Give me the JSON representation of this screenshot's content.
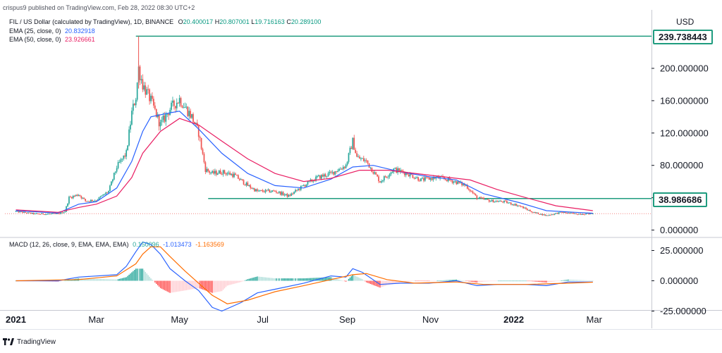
{
  "publisher": "crispus9 published on TradingView.com, Feb 28, 2022 08:30 UTC+2",
  "currency": "USD",
  "legend": {
    "symbol": "FIL / US Dollar (calculated by TradingView), 1D, BINANCE",
    "o_label": "O",
    "o": "20.400017",
    "h_label": "H",
    "h": "20.807001",
    "l_label": "L",
    "l": "19.716163",
    "c_label": "C",
    "c": "20.289100",
    "ema25_label": "EMA (25, close, 0)",
    "ema25": "20.832918",
    "ema50_label": "EMA (50, close, 0)",
    "ema50": "23.926661"
  },
  "price_tags": {
    "top": "239.738443",
    "mid": "38.986686"
  },
  "macd_legend": {
    "label": "MACD (12, 26, close, 9, EMA, EMA, EMA)",
    "hist": "0.150096",
    "macd": "-1.013473",
    "signal": "-1.163569"
  },
  "footer": {
    "brand": "TradingView"
  },
  "colors": {
    "up": "#26a69a",
    "down": "#ef5350",
    "ema25": "#2962ff",
    "ema50": "#e91e63",
    "macd": "#2962ff",
    "signal": "#ff6d00",
    "support": "#1f9c7f",
    "text": "#131722"
  },
  "chart_data": [
    {
      "type": "line",
      "title": "FIL / US Dollar (calculated by TradingView), 1D, BINANCE",
      "x_tick_labels": [
        "2021",
        "Mar",
        "May",
        "Jul",
        "Sep",
        "Nov",
        "2022",
        "Mar"
      ],
      "y_ticks": [
        "0.000000",
        "40.000000",
        "80.000000",
        "120.000000",
        "160.000000",
        "200.000000"
      ],
      "ylim": [
        0,
        248
      ],
      "horizontal_lines": [
        239.738443,
        38.986686
      ],
      "last_close": 20.2891,
      "closes": [
        {
          "x": "2021-01-01",
          "y": 23
        },
        {
          "x": "2021-01-15",
          "y": 20
        },
        {
          "x": "2021-02-01",
          "y": 20
        },
        {
          "x": "2021-02-06",
          "y": 23
        },
        {
          "x": "2021-02-09",
          "y": 40
        },
        {
          "x": "2021-02-16",
          "y": 44
        },
        {
          "x": "2021-02-21",
          "y": 36
        },
        {
          "x": "2021-03-01",
          "y": 37
        },
        {
          "x": "2021-03-10",
          "y": 48
        },
        {
          "x": "2021-03-16",
          "y": 78
        },
        {
          "x": "2021-03-23",
          "y": 95
        },
        {
          "x": "2021-03-27",
          "y": 145
        },
        {
          "x": "2021-03-30",
          "y": 165
        },
        {
          "x": "2021-04-01",
          "y": 200
        },
        {
          "x": "2021-04-04",
          "y": 180
        },
        {
          "x": "2021-04-10",
          "y": 160
        },
        {
          "x": "2021-04-17",
          "y": 130
        },
        {
          "x": "2021-04-24",
          "y": 150
        },
        {
          "x": "2021-05-01",
          "y": 162
        },
        {
          "x": "2021-05-10",
          "y": 140
        },
        {
          "x": "2021-05-15",
          "y": 120
        },
        {
          "x": "2021-05-20",
          "y": 75
        },
        {
          "x": "2021-05-25",
          "y": 70
        },
        {
          "x": "2021-06-01",
          "y": 72
        },
        {
          "x": "2021-06-10",
          "y": 68
        },
        {
          "x": "2021-06-20",
          "y": 55
        },
        {
          "x": "2021-06-27",
          "y": 48
        },
        {
          "x": "2021-07-10",
          "y": 48
        },
        {
          "x": "2021-07-20",
          "y": 42
        },
        {
          "x": "2021-07-31",
          "y": 55
        },
        {
          "x": "2021-08-10",
          "y": 65
        },
        {
          "x": "2021-08-20",
          "y": 70
        },
        {
          "x": "2021-08-31",
          "y": 80
        },
        {
          "x": "2021-09-05",
          "y": 110
        },
        {
          "x": "2021-09-08",
          "y": 90
        },
        {
          "x": "2021-09-15",
          "y": 85
        },
        {
          "x": "2021-09-25",
          "y": 60
        },
        {
          "x": "2021-10-05",
          "y": 75
        },
        {
          "x": "2021-10-15",
          "y": 70
        },
        {
          "x": "2021-10-25",
          "y": 62
        },
        {
          "x": "2021-11-05",
          "y": 65
        },
        {
          "x": "2021-11-15",
          "y": 62
        },
        {
          "x": "2021-11-27",
          "y": 55
        },
        {
          "x": "2021-12-05",
          "y": 40
        },
        {
          "x": "2021-12-15",
          "y": 36
        },
        {
          "x": "2021-12-25",
          "y": 35
        },
        {
          "x": "2022-01-05",
          "y": 30
        },
        {
          "x": "2022-01-15",
          "y": 22
        },
        {
          "x": "2022-01-25",
          "y": 18
        },
        {
          "x": "2022-02-05",
          "y": 22
        },
        {
          "x": "2022-02-15",
          "y": 20
        },
        {
          "x": "2022-02-28",
          "y": 20.2891
        }
      ],
      "series": [
        {
          "name": "EMA (25, close, 0)",
          "values": [
            {
              "x": "2021-01-01",
              "y": 24
            },
            {
              "x": "2021-02-01",
              "y": 21
            },
            {
              "x": "2021-02-16",
              "y": 32
            },
            {
              "x": "2021-03-01",
              "y": 35
            },
            {
              "x": "2021-03-16",
              "y": 52
            },
            {
              "x": "2021-03-27",
              "y": 85
            },
            {
              "x": "2021-04-04",
              "y": 122
            },
            {
              "x": "2021-04-10",
              "y": 140
            },
            {
              "x": "2021-04-24",
              "y": 145
            },
            {
              "x": "2021-05-01",
              "y": 147
            },
            {
              "x": "2021-05-15",
              "y": 125
            },
            {
              "x": "2021-06-01",
              "y": 95
            },
            {
              "x": "2021-06-20",
              "y": 70
            },
            {
              "x": "2021-07-10",
              "y": 55
            },
            {
              "x": "2021-07-31",
              "y": 52
            },
            {
              "x": "2021-08-20",
              "y": 63
            },
            {
              "x": "2021-09-05",
              "y": 78
            },
            {
              "x": "2021-09-20",
              "y": 80
            },
            {
              "x": "2021-10-10",
              "y": 72
            },
            {
              "x": "2021-10-31",
              "y": 66
            },
            {
              "x": "2021-11-20",
              "y": 62
            },
            {
              "x": "2021-12-10",
              "y": 45
            },
            {
              "x": "2022-01-05",
              "y": 34
            },
            {
              "x": "2022-01-25",
              "y": 24
            },
            {
              "x": "2022-02-15",
              "y": 22
            },
            {
              "x": "2022-02-28",
              "y": 20.832918
            }
          ]
        },
        {
          "name": "EMA (50, close, 0)",
          "values": [
            {
              "x": "2021-01-01",
              "y": 25
            },
            {
              "x": "2021-02-01",
              "y": 22
            },
            {
              "x": "2021-02-16",
              "y": 28
            },
            {
              "x": "2021-03-01",
              "y": 32
            },
            {
              "x": "2021-03-16",
              "y": 42
            },
            {
              "x": "2021-03-27",
              "y": 65
            },
            {
              "x": "2021-04-04",
              "y": 95
            },
            {
              "x": "2021-04-17",
              "y": 122
            },
            {
              "x": "2021-05-01",
              "y": 138
            },
            {
              "x": "2021-05-15",
              "y": 130
            },
            {
              "x": "2021-06-01",
              "y": 110
            },
            {
              "x": "2021-06-20",
              "y": 88
            },
            {
              "x": "2021-07-10",
              "y": 70
            },
            {
              "x": "2021-07-31",
              "y": 60
            },
            {
              "x": "2021-08-20",
              "y": 64
            },
            {
              "x": "2021-09-10",
              "y": 74
            },
            {
              "x": "2021-10-01",
              "y": 74
            },
            {
              "x": "2021-10-31",
              "y": 68
            },
            {
              "x": "2021-11-30",
              "y": 62
            },
            {
              "x": "2021-12-20",
              "y": 50
            },
            {
              "x": "2022-01-10",
              "y": 40
            },
            {
              "x": "2022-02-01",
              "y": 30
            },
            {
              "x": "2022-02-28",
              "y": 23.926661
            }
          ]
        }
      ]
    },
    {
      "type": "line",
      "title": "MACD (12, 26, close, 9, EMA, EMA, EMA)",
      "y_ticks": [
        "-25.000000",
        "0.000000",
        "25.000000"
      ],
      "ylim": [
        -28,
        38
      ],
      "series": [
        {
          "name": "MACD",
          "values": [
            {
              "x": "2021-01-01",
              "y": 0
            },
            {
              "x": "2021-02-01",
              "y": 0
            },
            {
              "x": "2021-02-16",
              "y": 3
            },
            {
              "x": "2021-03-16",
              "y": 5
            },
            {
              "x": "2021-03-23",
              "y": 12
            },
            {
              "x": "2021-03-30",
              "y": 24
            },
            {
              "x": "2021-04-04",
              "y": 32
            },
            {
              "x": "2021-04-10",
              "y": 30
            },
            {
              "x": "2021-04-17",
              "y": 22
            },
            {
              "x": "2021-04-24",
              "y": 10
            },
            {
              "x": "2021-05-05",
              "y": 0
            },
            {
              "x": "2021-05-15",
              "y": -8
            },
            {
              "x": "2021-05-25",
              "y": -22
            },
            {
              "x": "2021-06-01",
              "y": -25
            },
            {
              "x": "2021-06-15",
              "y": -18
            },
            {
              "x": "2021-06-27",
              "y": -10
            },
            {
              "x": "2021-07-10",
              "y": -7
            },
            {
              "x": "2021-07-31",
              "y": -2
            },
            {
              "x": "2021-08-20",
              "y": 4
            },
            {
              "x": "2021-08-31",
              "y": 3
            },
            {
              "x": "2021-09-05",
              "y": 10
            },
            {
              "x": "2021-09-12",
              "y": 7
            },
            {
              "x": "2021-09-25",
              "y": -3
            },
            {
              "x": "2021-10-10",
              "y": -2
            },
            {
              "x": "2021-10-31",
              "y": -2
            },
            {
              "x": "2021-11-20",
              "y": 0
            },
            {
              "x": "2021-12-05",
              "y": -4
            },
            {
              "x": "2021-12-20",
              "y": -3
            },
            {
              "x": "2022-01-10",
              "y": -3
            },
            {
              "x": "2022-01-25",
              "y": -4
            },
            {
              "x": "2022-02-10",
              "y": -1
            },
            {
              "x": "2022-02-28",
              "y": -1.013473
            }
          ]
        },
        {
          "name": "Signal",
          "values": [
            {
              "x": "2021-01-01",
              "y": 0
            },
            {
              "x": "2021-02-16",
              "y": 1
            },
            {
              "x": "2021-03-16",
              "y": 4
            },
            {
              "x": "2021-03-30",
              "y": 14
            },
            {
              "x": "2021-04-04",
              "y": 22
            },
            {
              "x": "2021-04-10",
              "y": 28
            },
            {
              "x": "2021-04-17",
              "y": 28
            },
            {
              "x": "2021-04-24",
              "y": 20
            },
            {
              "x": "2021-05-05",
              "y": 8
            },
            {
              "x": "2021-05-15",
              "y": -2
            },
            {
              "x": "2021-05-25",
              "y": -12
            },
            {
              "x": "2021-06-05",
              "y": -19
            },
            {
              "x": "2021-06-20",
              "y": -16
            },
            {
              "x": "2021-07-10",
              "y": -9
            },
            {
              "x": "2021-07-31",
              "y": -4
            },
            {
              "x": "2021-08-20",
              "y": 1
            },
            {
              "x": "2021-09-05",
              "y": 5
            },
            {
              "x": "2021-09-15",
              "y": 6
            },
            {
              "x": "2021-09-30",
              "y": 1
            },
            {
              "x": "2021-10-20",
              "y": -2
            },
            {
              "x": "2021-11-20",
              "y": -1
            },
            {
              "x": "2021-12-10",
              "y": -3
            },
            {
              "x": "2022-01-10",
              "y": -3
            },
            {
              "x": "2022-02-10",
              "y": -2
            },
            {
              "x": "2022-02-28",
              "y": -1.163569
            }
          ]
        }
      ]
    }
  ]
}
